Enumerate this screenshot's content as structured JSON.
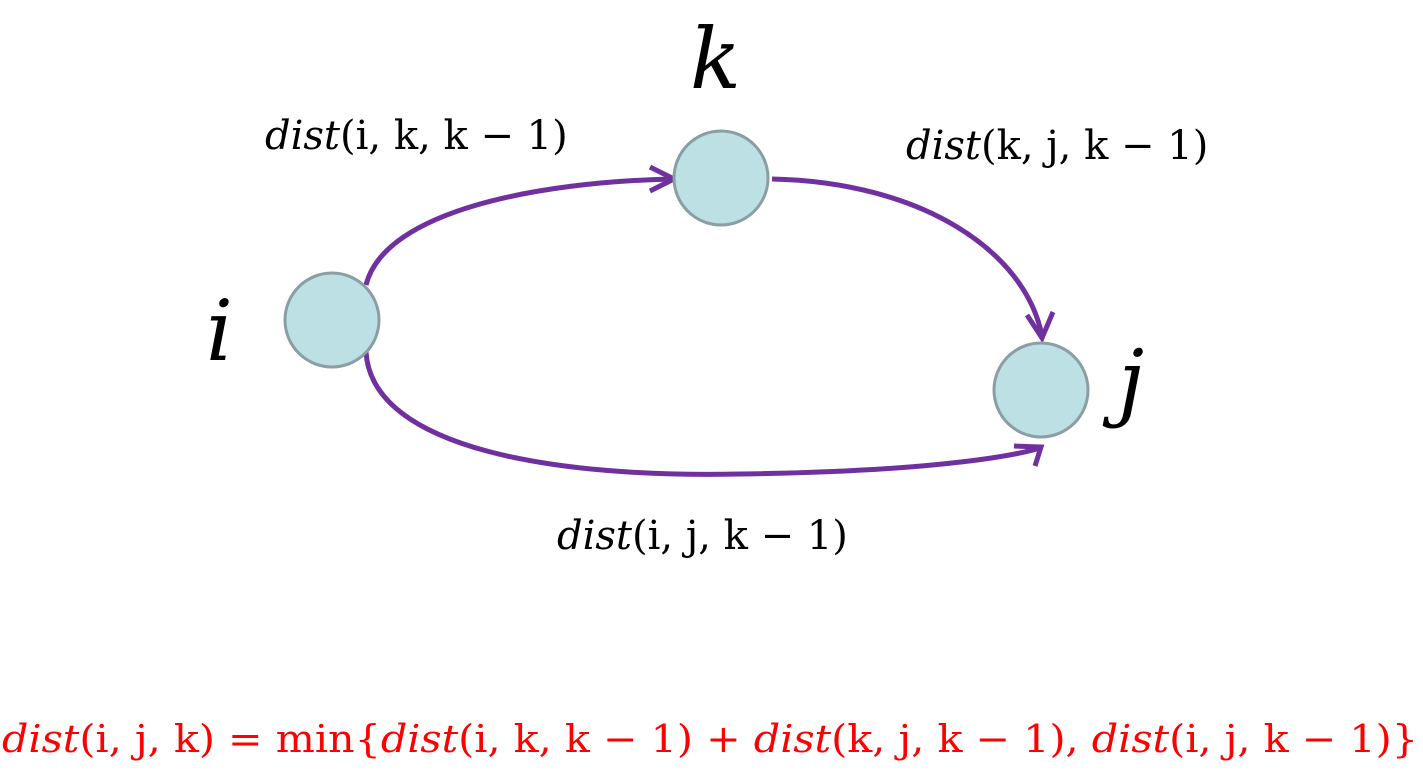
{
  "colors": {
    "node_fill": "#bce0e3",
    "node_stroke": "#8a9ea3",
    "edge": "#7030a0",
    "formula": "#ff0000",
    "text": "#000000"
  },
  "nodes": {
    "i": {
      "label": "i"
    },
    "k": {
      "label": "k"
    },
    "j": {
      "label": "j"
    }
  },
  "edges": {
    "i_to_k": {
      "func": "dist",
      "args": "(i, k, k − 1)"
    },
    "k_to_j": {
      "func": "dist",
      "args": "(k, j, k − 1)"
    },
    "i_to_j": {
      "func": "dist",
      "args": "(i, j, k − 1)"
    }
  },
  "formula": {
    "lhs_func": "dist",
    "lhs_args": "(i, j, k)",
    "equals": " = ",
    "min": "min",
    "open_brace": "{",
    "t1_func": "dist",
    "t1_args": "(i, k, k − 1)",
    "plus": " + ",
    "t2_func": "dist",
    "t2_args": "(k, j, k − 1)",
    "comma": ", ",
    "t3_func": "dist",
    "t3_args": "(i, j, k − 1)",
    "close_brace": "}"
  }
}
